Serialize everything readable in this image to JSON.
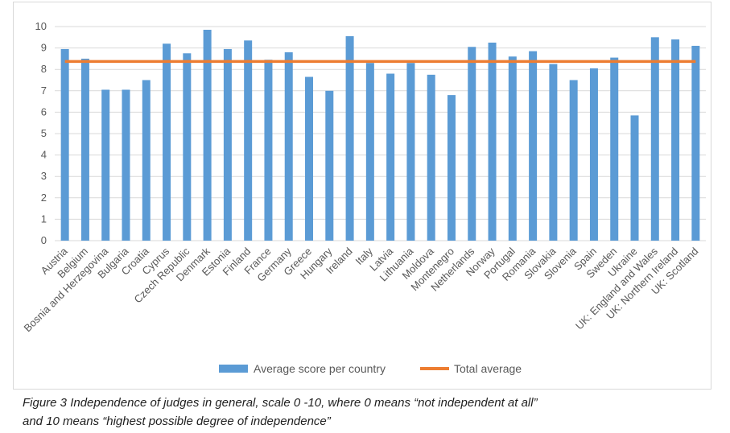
{
  "chart_data": {
    "type": "bar",
    "title": "",
    "xlabel": "",
    "ylabel": "",
    "ylim": [
      0,
      10
    ],
    "yticks": [
      0,
      1,
      2,
      3,
      4,
      5,
      6,
      7,
      8,
      9,
      10
    ],
    "grid": true,
    "legend_position": "bottom",
    "categories": [
      "Austria",
      "Belgium",
      "Bosnia and Herzegovina",
      "Bulgaria",
      "Croatia",
      "Cyprus",
      "Czech Republic",
      "Denmark",
      "Estonia",
      "Finland",
      "France",
      "Germany",
      "Greece",
      "Hungary",
      "Ireland",
      "Italy",
      "Latvia",
      "Lithuania",
      "Moldova",
      "Montenegro",
      "Netherlands",
      "Norway",
      "Portugal",
      "Romania",
      "Slovakia",
      "Slovenia",
      "Spain",
      "Sweden",
      "Ukraine",
      "UK: England and Wales",
      "UK: Northern Ireland",
      "UK: Scotland"
    ],
    "series": [
      {
        "name": "Average score per country",
        "kind": "bar",
        "color": "#5b9bd5",
        "values": [
          8.95,
          8.5,
          7.05,
          7.05,
          7.5,
          9.2,
          8.75,
          9.85,
          8.95,
          9.35,
          8.45,
          8.8,
          7.65,
          7.0,
          9.55,
          8.3,
          7.8,
          8.3,
          7.75,
          6.8,
          9.05,
          9.25,
          8.6,
          8.85,
          8.25,
          7.5,
          8.05,
          8.55,
          5.85,
          9.5,
          9.4,
          9.1
        ]
      },
      {
        "name": "Total average",
        "kind": "line",
        "color": "#ed7d31",
        "value": 8.37
      }
    ]
  },
  "caption": {
    "line1": "Figure 3   Independence of judges in general, scale 0 -10, where 0 means “not independent at all”",
    "line2": "and 10 means “highest possible degree of independence”"
  }
}
